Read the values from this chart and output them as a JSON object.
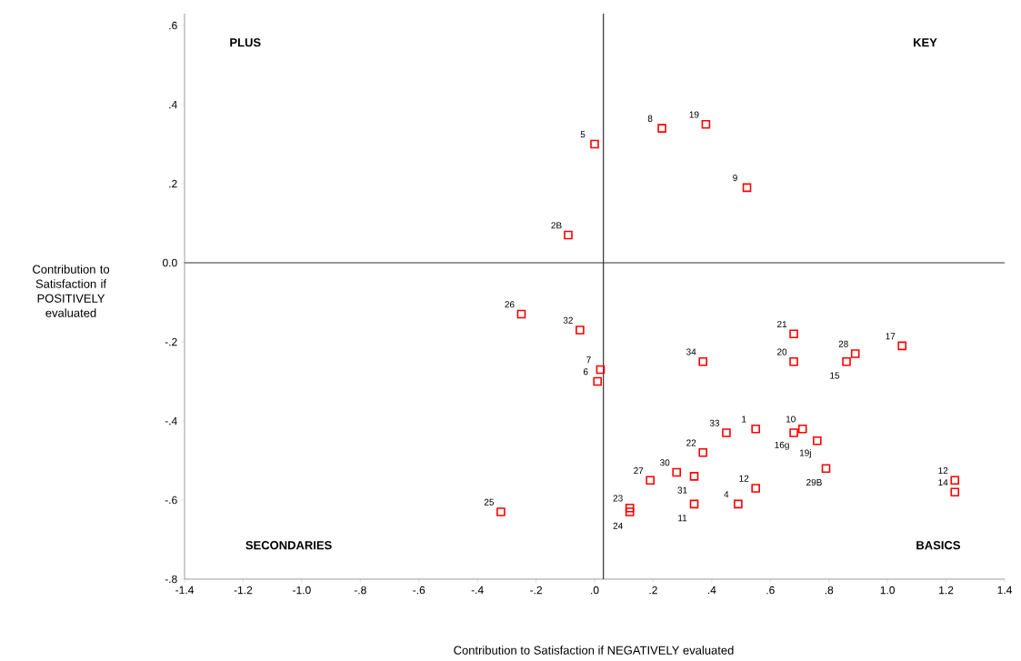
{
  "chart_data": {
    "type": "scatter",
    "xlabel": "Contribution to Satisfaction  if NEGATIVELY evaluated",
    "ylabel": "Contribution to Satisfaction if POSITIVELY evaluated",
    "xlim": [
      -1.4,
      1.4
    ],
    "ylim": [
      -0.8,
      0.63
    ],
    "xticks": [
      -1.4,
      -1.2,
      {
        "value": -1.0,
        "label": "-1.0"
      },
      {
        "value": -0.8,
        "label": "-.8"
      },
      {
        "value": -0.6,
        "label": "-.6"
      },
      {
        "value": -0.4,
        "label": "-.4"
      },
      {
        "value": -0.2,
        "label": "-.2"
      },
      {
        "value": 0,
        "label": ".0"
      },
      {
        "value": 0.2,
        "label": ".2"
      },
      {
        "value": 0.4,
        "label": ".4"
      },
      {
        "value": 0.6,
        "label": ".6"
      },
      {
        "value": 0.8,
        "label": ".8"
      },
      {
        "value": 1.0,
        "label": "1.0"
      },
      1.2,
      1.4
    ],
    "yticks": [
      {
        "value": -0.8,
        "label": "-.8"
      },
      {
        "value": -0.6,
        "label": "-.6"
      },
      {
        "value": -0.4,
        "label": "-.4"
      },
      {
        "value": -0.2,
        "label": "-.2"
      },
      {
        "value": 0,
        "label": "0.0"
      },
      {
        "value": 0.2,
        "label": ".2"
      },
      {
        "value": 0.4,
        "label": ".4"
      },
      {
        "value": 0.6,
        "label": ".6"
      }
    ],
    "marker": "square",
    "grid": false,
    "ref_lines": [
      {
        "axis": "x",
        "value": 0.03,
        "color": "#333333"
      },
      {
        "axis": "y",
        "value": 0,
        "color": "#333333"
      }
    ],
    "series": [
      {
        "color": "#ff0000",
        "x": [
          0.0,
          0.23,
          0.38,
          0.52,
          -0.09,
          -0.25,
          -0.05,
          0.02,
          0.01,
          0.37,
          0.68,
          0.68,
          0.89,
          0.86,
          1.05,
          0.55,
          0.45,
          0.71,
          0.68,
          0.76,
          0.79,
          0.37,
          0.19,
          0.28,
          0.34,
          0.55,
          0.34,
          0.49,
          0.12,
          0.12,
          -0.32,
          1.23,
          1.23
        ],
        "values": [
          0.3,
          0.34,
          0.35,
          0.19,
          0.07,
          -0.13,
          -0.17,
          -0.27,
          -0.3,
          -0.25,
          -0.18,
          -0.25,
          -0.23,
          -0.25,
          -0.21,
          -0.42,
          -0.43,
          -0.42,
          -0.43,
          -0.45,
          -0.52,
          -0.48,
          -0.55,
          -0.53,
          -0.54,
          -0.57,
          -0.61,
          -0.61,
          -0.62,
          -0.63,
          -0.63,
          -0.55,
          -0.58
        ]
      }
    ],
    "annotations": [
      "PLUS",
      "KEY",
      "SECONDARIES",
      "BASICS",
      {
        "text": "5",
        "x": 0.0,
        "y": 0.3
      },
      {
        "text": "8",
        "x": 0.23,
        "y": 0.34
      },
      {
        "text": "19",
        "x": 0.38,
        "y": 0.35
      },
      {
        "text": "9",
        "x": 0.52,
        "y": 0.19
      },
      {
        "text": "2B",
        "x": -0.09,
        "y": 0.07
      },
      {
        "text": "26",
        "x": -0.25,
        "y": -0.13
      },
      {
        "text": "32",
        "x": -0.05,
        "y": -0.17
      },
      {
        "text": "7",
        "x": 0.02,
        "y": -0.27
      },
      {
        "text": "6",
        "x": 0.01,
        "y": -0.3
      },
      {
        "text": "34",
        "x": 0.37,
        "y": -0.25
      },
      {
        "text": "21",
        "x": 0.68,
        "y": -0.18
      },
      {
        "text": "20",
        "x": 0.68,
        "y": -0.25
      },
      {
        "text": "28",
        "x": 0.89,
        "y": -0.23
      },
      {
        "text": "15",
        "x": 0.86,
        "y": -0.25
      },
      {
        "text": "17",
        "x": 1.05,
        "y": -0.21
      },
      {
        "text": "1",
        "x": 0.55,
        "y": -0.42
      },
      {
        "text": "33",
        "x": 0.45,
        "y": -0.43
      },
      {
        "text": "10",
        "x": 0.71,
        "y": -0.42
      },
      {
        "text": "16g",
        "x": 0.68,
        "y": -0.43
      },
      {
        "text": "19j",
        "x": 0.76,
        "y": -0.45
      },
      {
        "text": "29B",
        "x": 0.79,
        "y": -0.52
      },
      {
        "text": "22",
        "x": 0.37,
        "y": -0.48
      },
      {
        "text": "27",
        "x": 0.19,
        "y": -0.55
      },
      {
        "text": "30",
        "x": 0.28,
        "y": -0.53
      },
      {
        "text": "31",
        "x": 0.34,
        "y": -0.54
      },
      {
        "text": "12",
        "x": 0.55,
        "y": -0.57
      },
      {
        "text": "11",
        "x": 0.34,
        "y": -0.61
      },
      {
        "text": "4",
        "x": 0.49,
        "y": -0.61
      },
      {
        "text": "23",
        "x": 0.12,
        "y": -0.62
      },
      {
        "text": "24",
        "x": 0.12,
        "y": -0.63
      },
      {
        "text": "25",
        "x": -0.32,
        "y": -0.63
      },
      {
        "text": "12",
        "x": 1.23,
        "y": -0.55
      },
      {
        "text": "14",
        "x": 1.23,
        "y": -0.58
      }
    ]
  }
}
